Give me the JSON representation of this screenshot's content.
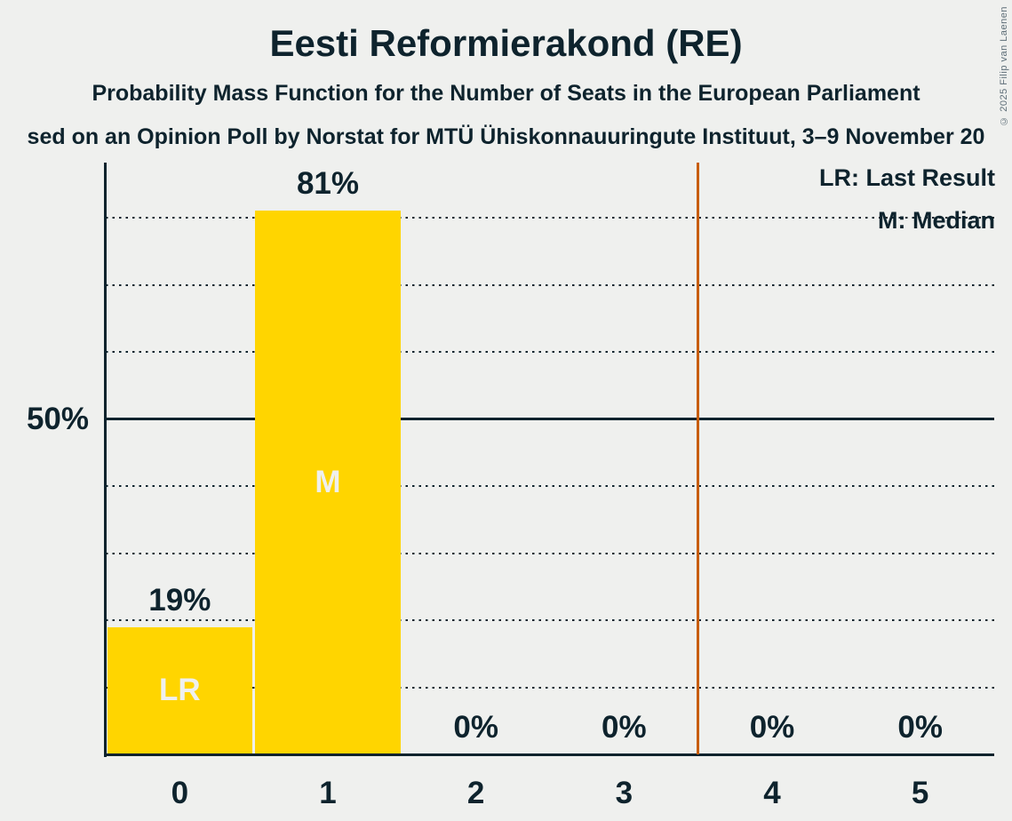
{
  "header": {
    "title": "Eesti Reformierakond (RE)",
    "subtitle": "Probability Mass Function for the Number of Seats in the European Parliament",
    "source_line": "sed on an Opinion Poll by Norstat for MTÜ Ühiskonnauuringute Instituut, 3–9 November 20",
    "copyright": "© 2025 Filip van Laenen"
  },
  "legend": {
    "last_result": "LR: Last Result",
    "median": "M: Median"
  },
  "chart_data": {
    "type": "bar",
    "title": "Eesti Reformierakond (RE)",
    "categories": [
      "0",
      "1",
      "2",
      "3",
      "4",
      "5"
    ],
    "values": [
      19,
      81,
      0,
      0,
      0,
      0
    ],
    "bar_value_labels": [
      "19%",
      "81%",
      "0%",
      "0%",
      "0%",
      "0%"
    ],
    "bar_markers": [
      "LR",
      "M",
      "",
      "",
      "",
      ""
    ],
    "y_tick": {
      "pct": 50,
      "label": "50%"
    },
    "ylim": [
      0,
      88
    ],
    "dotted_gridlines_pct": [
      10,
      20,
      30,
      40,
      60,
      70,
      80
    ],
    "solid_gridline_pct": 50,
    "majority_line_seats": 3.5,
    "legend_position": "top-right",
    "grid": true,
    "colors": {
      "bar": "#ffd500",
      "majority_line": "#c75d0d",
      "text": "#0e232d",
      "background": "#eff0ee",
      "marker_text": "#eff0ee",
      "copyright_text": "#5e6e78"
    }
  }
}
